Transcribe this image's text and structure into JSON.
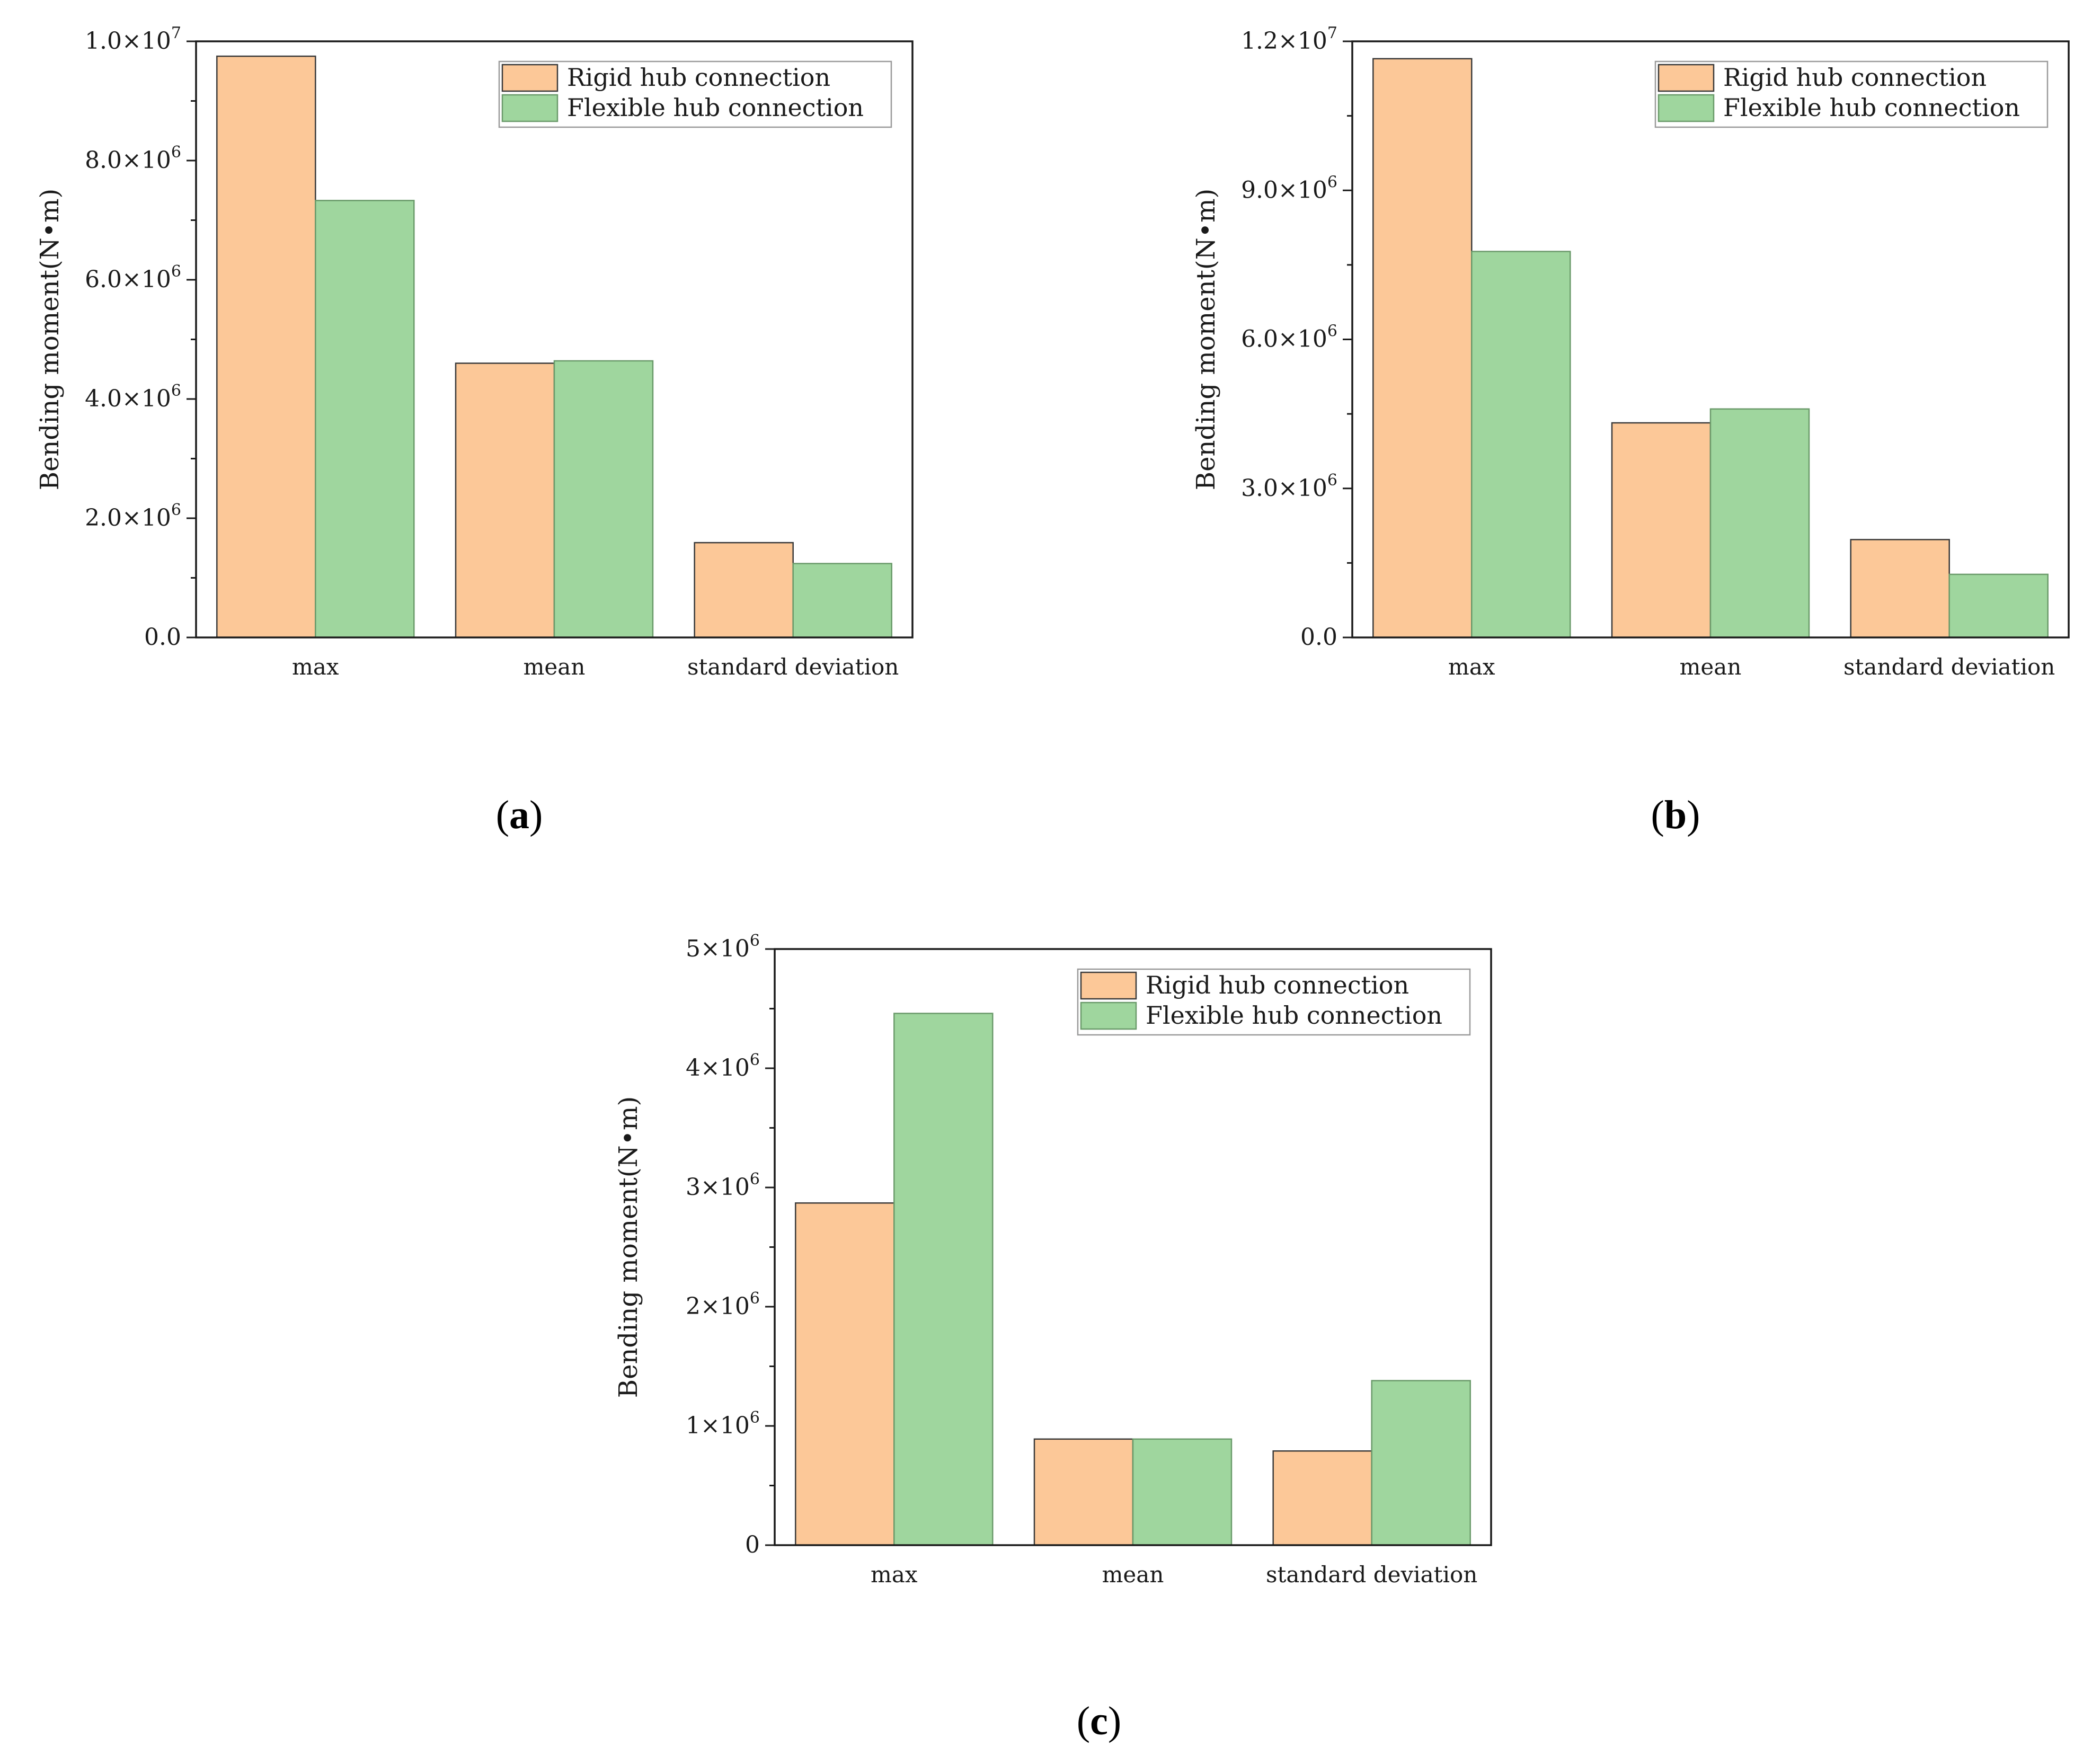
{
  "colors": {
    "rigid": "#fcc898",
    "flexible": "#9fd69e",
    "edge_rigid": "#3a3a3a",
    "edge_flexible": "#6a9a6a"
  },
  "chart_data": [
    {
      "type": "bar",
      "panel_label": "a",
      "categories": [
        "max",
        "mean",
        "standard deviation"
      ],
      "series": [
        {
          "name": "Rigid hub connection",
          "values": [
            9750000,
            4600000,
            1590000
          ]
        },
        {
          "name": "Flexible hub connection",
          "values": [
            7330000,
            4640000,
            1240000
          ]
        }
      ],
      "ylabel": "Bending moment(N•m)",
      "ylim": [
        0,
        10000000
      ],
      "yticks": [
        0,
        2000000,
        4000000,
        6000000,
        8000000,
        10000000
      ],
      "ytick_labels": [
        {
          "mant": "0.0",
          "exp": ""
        },
        {
          "mant": "2.0×10",
          "exp": "6"
        },
        {
          "mant": "4.0×10",
          "exp": "6"
        },
        {
          "mant": "6.0×10",
          "exp": "6"
        },
        {
          "mant": "8.0×10",
          "exp": "6"
        },
        {
          "mant": "1.0×10",
          "exp": "7"
        }
      ],
      "legend": "top-right"
    },
    {
      "type": "bar",
      "panel_label": "b",
      "categories": [
        "max",
        "mean",
        "standard deviation"
      ],
      "series": [
        {
          "name": "Rigid hub connection",
          "values": [
            11650000,
            4320000,
            1970000
          ]
        },
        {
          "name": "Flexible hub connection",
          "values": [
            7770000,
            4600000,
            1270000
          ]
        }
      ],
      "ylabel": "Bending moment(N•m)",
      "ylim": [
        0,
        12000000
      ],
      "yticks": [
        0,
        3000000,
        6000000,
        9000000,
        12000000
      ],
      "ytick_labels": [
        {
          "mant": "0.0",
          "exp": ""
        },
        {
          "mant": "3.0×10",
          "exp": "6"
        },
        {
          "mant": "6.0×10",
          "exp": "6"
        },
        {
          "mant": "9.0×10",
          "exp": "6"
        },
        {
          "mant": "1.2×10",
          "exp": "7"
        }
      ],
      "legend": "top-right"
    },
    {
      "type": "bar",
      "panel_label": "c",
      "categories": [
        "max",
        "mean",
        "standard deviation"
      ],
      "series": [
        {
          "name": "Rigid hub connection",
          "values": [
            2870000,
            890000,
            790000
          ]
        },
        {
          "name": "Flexible hub connection",
          "values": [
            4460000,
            890000,
            1380000
          ]
        }
      ],
      "ylabel": "Bending moment(N•m)",
      "ylim": [
        0,
        5000000
      ],
      "yticks": [
        0,
        1000000,
        2000000,
        3000000,
        4000000,
        5000000
      ],
      "ytick_labels": [
        {
          "mant": "0",
          "exp": ""
        },
        {
          "mant": "1×10",
          "exp": "6"
        },
        {
          "mant": "2×10",
          "exp": "6"
        },
        {
          "mant": "3×10",
          "exp": "6"
        },
        {
          "mant": "4×10",
          "exp": "6"
        },
        {
          "mant": "5×10",
          "exp": "6"
        }
      ],
      "legend": "top-right"
    }
  ]
}
